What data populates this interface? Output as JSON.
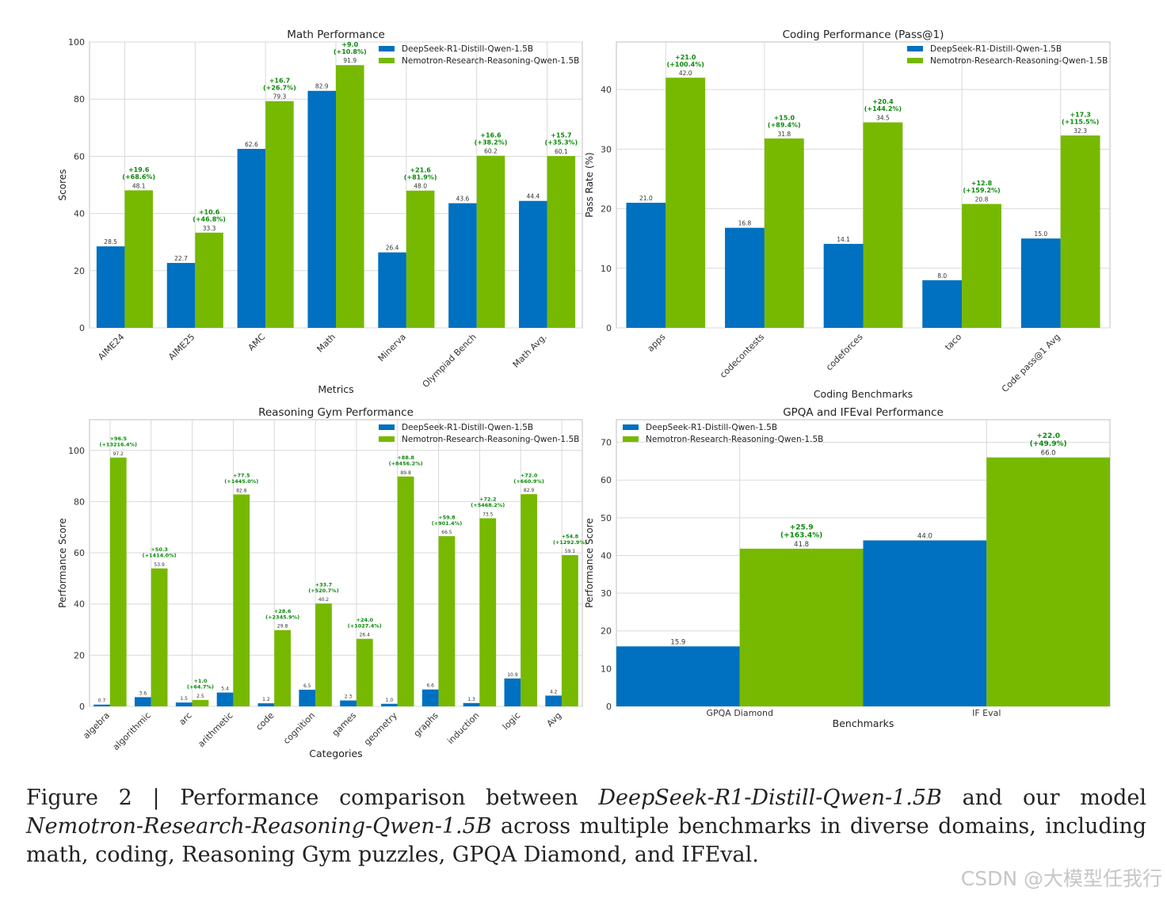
{
  "colors": {
    "base": "#0070C0",
    "ours": "#76B900",
    "delta": "#0a8a0a",
    "grid": "#d9d9d9",
    "axis": "#bfbfbf"
  },
  "caption": {
    "prefix": "Figure 2 | Performance comparison between ",
    "model_a": "DeepSeek-R1-Distill-Qwen-1.5B",
    "middle": " and our model ",
    "model_b": "Nemotron-Research-Reasoning-Qwen-1.5B",
    "suffix": " across multiple benchmarks in diverse domains, including math, coding, Reasoning Gym puzzles, GPQA Diamond, and IFEval."
  },
  "watermark": "CSDN @大模型任我行",
  "chart_data": [
    {
      "type": "bar",
      "title": "Math Performance",
      "xlabel": "Metrics",
      "ylabel": "Scores",
      "ylim": [
        0,
        100
      ],
      "yticks": [
        0,
        20,
        40,
        60,
        80,
        100
      ],
      "grid": true,
      "legend": "top-right",
      "categories": [
        "AIME24",
        "AIME25",
        "AMC",
        "Math",
        "Minerva",
        "Olympiad Bench",
        "Math Avg."
      ],
      "series": [
        {
          "name": "DeepSeek-R1-Distill-Qwen-1.5B",
          "values": [
            28.5,
            22.7,
            62.6,
            82.9,
            26.4,
            43.6,
            44.4
          ],
          "labels": [
            "28.5",
            "22.7",
            "62.6",
            "82.9",
            "26.4",
            "43.6",
            "44.4"
          ]
        },
        {
          "name": "Nemotron-Research-Reasoning-Qwen-1.5B",
          "values": [
            48.1,
            33.3,
            79.3,
            91.9,
            48.0,
            60.2,
            60.1
          ],
          "labels": [
            "48.1",
            "33.3",
            "79.3",
            "91.9",
            "48.0",
            "60.2",
            "60.1"
          ]
        }
      ],
      "annotations": [
        [
          "+19.6",
          "(+68.6%)"
        ],
        [
          "+10.6",
          "(+46.8%)"
        ],
        [
          "+16.7",
          "(+26.7%)"
        ],
        [
          "+9.0",
          "(+10.8%)"
        ],
        [
          "+21.6",
          "(+81.9%)"
        ],
        [
          "+16.6",
          "(+38.2%)"
        ],
        [
          "+15.7",
          "(+35.3%)"
        ]
      ]
    },
    {
      "type": "bar",
      "title": "Coding Performance (Pass@1)",
      "xlabel": "Coding Benchmarks",
      "ylabel": "Pass Rate (%)",
      "ylim": [
        0,
        48
      ],
      "yticks": [
        0,
        10,
        20,
        30,
        40
      ],
      "grid": true,
      "legend": "top-right",
      "categories": [
        "apps",
        "codecontests",
        "codeforces",
        "taco",
        "Code pass@1 Avg"
      ],
      "series": [
        {
          "name": "DeepSeek-R1-Distill-Qwen-1.5B",
          "values": [
            21.0,
            16.8,
            14.1,
            8.0,
            15.0
          ],
          "labels": [
            "21.0",
            "16.8",
            "14.1",
            "8.0",
            "15.0"
          ]
        },
        {
          "name": "Nemotron-Research-Reasoning-Qwen-1.5B",
          "values": [
            42.0,
            31.8,
            34.5,
            20.8,
            32.3
          ],
          "labels": [
            "42.0",
            "31.8",
            "34.5",
            "20.8",
            "32.3"
          ]
        }
      ],
      "annotations": [
        [
          "+21.0",
          "(+100.4%)"
        ],
        [
          "+15.0",
          "(+89.4%)"
        ],
        [
          "+20.4",
          "(+144.2%)"
        ],
        [
          "+12.8",
          "(+159.2%)"
        ],
        [
          "+17.3",
          "(+115.5%)"
        ]
      ]
    },
    {
      "type": "bar",
      "title": "Reasoning Gym Performance",
      "xlabel": "Categories",
      "ylabel": "Performance Score",
      "ylim": [
        0,
        112
      ],
      "yticks": [
        0,
        20,
        40,
        60,
        80,
        100
      ],
      "grid": true,
      "legend": "top-right",
      "categories": [
        "algebra",
        "algorithmic",
        "arc",
        "arithmetic",
        "code",
        "cognition",
        "games",
        "geometry",
        "graphs",
        "induction",
        "logic",
        "Avg"
      ],
      "series": [
        {
          "name": "DeepSeek-R1-Distill-Qwen-1.5B",
          "values": [
            0.7,
            3.6,
            1.5,
            5.4,
            1.2,
            6.5,
            2.3,
            1.0,
            6.6,
            1.3,
            10.9,
            4.2
          ],
          "labels": [
            "0.7",
            "3.6",
            "1.5",
            "5.4",
            "1.2",
            "6.5",
            "2.3",
            "1.0",
            "6.6",
            "1.3",
            "10.9",
            "4.2"
          ]
        },
        {
          "name": "Nemotron-Research-Reasoning-Qwen-1.5B",
          "values": [
            97.2,
            53.9,
            2.5,
            82.8,
            29.8,
            40.2,
            26.4,
            89.8,
            66.5,
            73.5,
            82.9,
            59.1
          ],
          "labels": [
            "97.2",
            "53.9",
            "2.5",
            "82.8",
            "29.8",
            "40.2",
            "26.4",
            "89.8",
            "66.5",
            "73.5",
            "82.9",
            "59.1"
          ]
        }
      ],
      "annotations": [
        [
          "+96.5",
          "(+13216.4%)"
        ],
        [
          "+50.3",
          "(+1414.0%)"
        ],
        [
          "+1.0",
          "(+64.7%)"
        ],
        [
          "+77.5",
          "(+1445.0%)"
        ],
        [
          "+28.6",
          "(+2345.9%)"
        ],
        [
          "+33.7",
          "(+520.7%)"
        ],
        [
          "+24.0",
          "(+1027.4%)"
        ],
        [
          "+88.8",
          "(+8456.2%)"
        ],
        [
          "+59.8",
          "(+901.4%)"
        ],
        [
          "+72.2",
          "(+5468.2%)"
        ],
        [
          "+72.0",
          "(+660.9%)"
        ],
        [
          "+54.8",
          "(+1292.9%)"
        ]
      ]
    },
    {
      "type": "bar",
      "title": "GPQA and IFEval Performance",
      "xlabel": "Benchmarks",
      "ylabel": "Performance Score",
      "ylim": [
        0,
        76
      ],
      "yticks": [
        0,
        10,
        20,
        30,
        40,
        50,
        60,
        70
      ],
      "grid": true,
      "legend": "top-left",
      "categories": [
        "GPQA Diamond",
        "IF Eval"
      ],
      "series": [
        {
          "name": "DeepSeek-R1-Distill-Qwen-1.5B",
          "values": [
            15.9,
            44.0
          ],
          "labels": [
            "15.9",
            "44.0"
          ]
        },
        {
          "name": "Nemotron-Research-Reasoning-Qwen-1.5B",
          "values": [
            41.8,
            66.0
          ],
          "labels": [
            "41.8",
            "66.0"
          ]
        }
      ],
      "annotations": [
        [
          "+25.9",
          "(+163.4%)"
        ],
        [
          "+22.0",
          "(+49.9%)"
        ]
      ]
    }
  ]
}
